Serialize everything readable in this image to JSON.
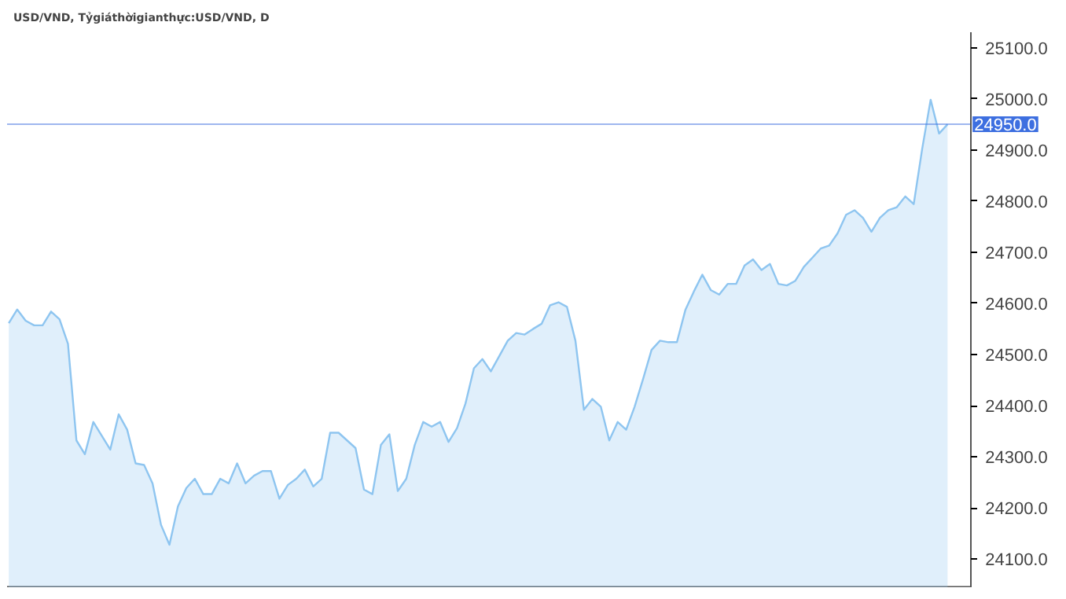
{
  "chart_data": {
    "type": "area",
    "title": "USD/VND, Tỷgiáthờigianthực:USD/VND, D",
    "categories": [
      null,
      null,
      null,
      null,
      null,
      null,
      null,
      null,
      null,
      null,
      null,
      null,
      null,
      null,
      null,
      null,
      null,
      null,
      null,
      null,
      null,
      null,
      null,
      null,
      null,
      null,
      null,
      null,
      null,
      null,
      null,
      null,
      null,
      null,
      null,
      null,
      null,
      null,
      null,
      null,
      null,
      null,
      null,
      null,
      null,
      null,
      null,
      null,
      null,
      null,
      null,
      null,
      null,
      null,
      null,
      null,
      null,
      null,
      null,
      null,
      null,
      null,
      null,
      null,
      null,
      null,
      null,
      null,
      null,
      null,
      null,
      null,
      null,
      null,
      null,
      null,
      null,
      null,
      null,
      null,
      null,
      null,
      null,
      null,
      null,
      null,
      null,
      null,
      null,
      null,
      null,
      null,
      null,
      null,
      null,
      null,
      null,
      null,
      null,
      null,
      null,
      null,
      null,
      null,
      null,
      null,
      null,
      null,
      null,
      null,
      null,
      null
    ],
    "series": [
      {
        "color": "#8ec5f0",
        "values": [
          24561,
          24588,
          24566,
          24557,
          24557,
          24584,
          24569,
          24521,
          24332,
          24305,
          24368,
          24341,
          24314,
          24383,
          24353,
          24287,
          24284,
          24248,
          24167,
          24128,
          24203,
          24239,
          24257,
          24227,
          24227,
          24257,
          24248,
          24287,
          24248,
          24263,
          24272,
          24272,
          24218,
          24245,
          24257,
          24275,
          24242,
          24257,
          24347,
          24347,
          24332,
          24317,
          24236,
          24227,
          24323,
          24344,
          24233,
          24257,
          24323,
          24368,
          24359,
          24368,
          24329,
          24356,
          24404,
          24473,
          24491,
          24467,
          24497,
          24527,
          24542,
          24539,
          24550,
          24560,
          24596,
          24602,
          24593,
          24527,
          24392,
          24413,
          24398,
          24332,
          24368,
          24353,
          24398,
          24452,
          24509,
          24527,
          24524,
          24524,
          24587,
          24623,
          24656,
          24626,
          24617,
          24638,
          24638,
          24674,
          24686,
          24665,
          24677,
          24638,
          24635,
          24644,
          24671,
          24689,
          24707,
          24713,
          24737,
          24773,
          24782,
          24767,
          24740,
          24767,
          24782,
          24788,
          24809,
          24794,
          24902,
          24998,
          24932,
          24950
        ]
      }
    ],
    "ylim": [
      24045,
      25130
    ],
    "yticks": [
      {
        "value": 24100,
        "label": "24100.0"
      },
      {
        "value": 24200,
        "label": "24200.0"
      },
      {
        "value": 24300,
        "label": "24300.0"
      },
      {
        "value": 24400,
        "label": "24400.0"
      },
      {
        "value": 24500,
        "label": "24500.0"
      },
      {
        "value": 24600,
        "label": "24600.0"
      },
      {
        "value": 24700,
        "label": "24700.0"
      },
      {
        "value": 24800,
        "label": "24800.0"
      },
      {
        "value": 24900,
        "label": "24900.0"
      },
      {
        "value": 25000,
        "label": "25000.0"
      },
      {
        "value": 25100,
        "label": "25100.0"
      }
    ],
    "ref_lines": [
      {
        "axis": "y",
        "value": 24950,
        "label": "24950.0",
        "color": "#3d6fe0"
      }
    ],
    "grid": false,
    "tick_labels": "y"
  }
}
